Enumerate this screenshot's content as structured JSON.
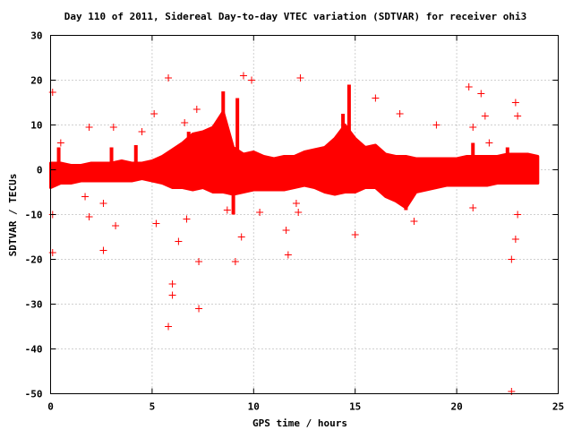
{
  "chart_data": {
    "type": "scatter",
    "title": "Day 110 of 2011, Sidereal Day-to-day VTEC variation (SDTVAR) for receiver ohi3",
    "xlabel": "GPS time / hours",
    "ylabel": "SDTVAR / TECUs",
    "xlim": [
      0,
      25
    ],
    "ylim": [
      -50,
      30
    ],
    "xticks": [
      0,
      5,
      10,
      15,
      20,
      25
    ],
    "yticks": [
      30,
      20,
      10,
      0,
      -10,
      -20,
      -30,
      -40,
      -50
    ],
    "grid": true,
    "marker": "plus",
    "color": "#ff0000",
    "band": {
      "x": [
        0.0,
        0.5,
        1.0,
        1.5,
        2.0,
        2.5,
        3.0,
        3.5,
        4.0,
        4.5,
        5.0,
        5.5,
        6.0,
        6.5,
        7.0,
        7.5,
        8.0,
        8.5,
        9.0,
        9.5,
        10.0,
        10.5,
        11.0,
        11.5,
        12.0,
        12.5,
        13.0,
        13.5,
        14.0,
        14.5,
        15.0,
        15.5,
        16.0,
        16.5,
        17.0,
        17.5,
        18.0,
        18.5,
        19.0,
        19.5,
        20.0,
        20.5,
        21.0,
        21.5,
        22.0,
        22.5,
        23.0,
        23.5,
        24.0
      ],
      "upper": [
        1.5,
        1.5,
        1.0,
        1.0,
        1.5,
        1.5,
        1.5,
        2.0,
        1.5,
        1.5,
        2.0,
        3.0,
        4.5,
        6.0,
        8.0,
        8.5,
        9.5,
        13.0,
        5.0,
        3.5,
        4.0,
        3.0,
        2.5,
        3.0,
        3.0,
        4.0,
        4.5,
        5.0,
        7.0,
        10.0,
        7.0,
        5.0,
        5.5,
        3.5,
        3.0,
        3.0,
        2.5,
        2.5,
        2.5,
        2.5,
        2.5,
        3.0,
        3.0,
        3.0,
        3.0,
        3.5,
        3.5,
        3.5,
        3.0
      ],
      "lower": [
        -4.0,
        -3.0,
        -3.0,
        -2.5,
        -2.5,
        -2.5,
        -2.5,
        -2.5,
        -2.5,
        -2.0,
        -2.5,
        -3.0,
        -4.0,
        -4.0,
        -4.5,
        -4.0,
        -5.0,
        -5.0,
        -5.5,
        -5.0,
        -4.5,
        -4.5,
        -4.5,
        -4.5,
        -4.0,
        -3.5,
        -4.0,
        -5.0,
        -5.5,
        -5.0,
        -5.0,
        -4.0,
        -4.0,
        -6.0,
        -7.0,
        -8.5,
        -5.0,
        -4.5,
        -4.0,
        -3.5,
        -3.5,
        -3.5,
        -3.5,
        -3.5,
        -3.0,
        -3.0,
        -3.0,
        -3.0,
        -3.0
      ]
    },
    "spikes": [
      {
        "x": 8.5,
        "y": 17.5
      },
      {
        "x": 9.2,
        "y": 16.0
      },
      {
        "x": 14.7,
        "y": 19.0
      },
      {
        "x": 14.4,
        "y": 12.5
      },
      {
        "x": 6.8,
        "y": 8.5
      },
      {
        "x": 3.0,
        "y": 5.0
      },
      {
        "x": 4.2,
        "y": 5.5
      },
      {
        "x": 17.5,
        "y": -9.0
      },
      {
        "x": 22.5,
        "y": 5.0
      },
      {
        "x": 20.8,
        "y": 6.0
      },
      {
        "x": 9.0,
        "y": -10.0
      },
      {
        "x": 0.4,
        "y": 5.0
      }
    ],
    "points": [
      {
        "x": 0.1,
        "y": 17.3
      },
      {
        "x": 0.1,
        "y": -18.5
      },
      {
        "x": 0.1,
        "y": -10.0
      },
      {
        "x": 0.5,
        "y": 6.0
      },
      {
        "x": 1.9,
        "y": 9.5
      },
      {
        "x": 1.9,
        "y": -10.5
      },
      {
        "x": 2.6,
        "y": -18.0
      },
      {
        "x": 2.6,
        "y": -7.5
      },
      {
        "x": 3.1,
        "y": 9.5
      },
      {
        "x": 3.2,
        "y": -12.5
      },
      {
        "x": 4.5,
        "y": 8.5
      },
      {
        "x": 5.1,
        "y": 12.5
      },
      {
        "x": 5.2,
        "y": -12.0
      },
      {
        "x": 5.8,
        "y": 20.5
      },
      {
        "x": 5.8,
        "y": -35.0
      },
      {
        "x": 6.0,
        "y": -25.5
      },
      {
        "x": 6.0,
        "y": -28.0
      },
      {
        "x": 6.3,
        "y": -16.0
      },
      {
        "x": 6.6,
        "y": 10.5
      },
      {
        "x": 6.7,
        "y": -11.0
      },
      {
        "x": 7.2,
        "y": 13.5
      },
      {
        "x": 7.3,
        "y": -20.5
      },
      {
        "x": 7.3,
        "y": -31.0
      },
      {
        "x": 8.7,
        "y": -9.0
      },
      {
        "x": 9.1,
        "y": -20.5
      },
      {
        "x": 9.4,
        "y": -15.0
      },
      {
        "x": 9.5,
        "y": 21.0
      },
      {
        "x": 9.9,
        "y": 20.0
      },
      {
        "x": 10.3,
        "y": -9.5
      },
      {
        "x": 11.6,
        "y": -13.5
      },
      {
        "x": 11.7,
        "y": -19.0
      },
      {
        "x": 12.1,
        "y": -7.5
      },
      {
        "x": 12.3,
        "y": 20.5
      },
      {
        "x": 12.2,
        "y": -9.5
      },
      {
        "x": 15.0,
        "y": -14.5
      },
      {
        "x": 16.0,
        "y": 16.0
      },
      {
        "x": 17.2,
        "y": 12.5
      },
      {
        "x": 17.9,
        "y": -11.5
      },
      {
        "x": 19.0,
        "y": 10.0
      },
      {
        "x": 20.6,
        "y": 18.5
      },
      {
        "x": 20.8,
        "y": 9.5
      },
      {
        "x": 20.8,
        "y": -8.5
      },
      {
        "x": 21.2,
        "y": 17.0
      },
      {
        "x": 21.4,
        "y": 12.0
      },
      {
        "x": 21.6,
        "y": 6.0
      },
      {
        "x": 22.7,
        "y": -20.0
      },
      {
        "x": 22.7,
        "y": -49.5
      },
      {
        "x": 22.9,
        "y": 15.0
      },
      {
        "x": 23.0,
        "y": 12.0
      },
      {
        "x": 22.9,
        "y": -15.5
      },
      {
        "x": 23.0,
        "y": -10.0
      },
      {
        "x": 1.7,
        "y": -6.0
      }
    ]
  }
}
